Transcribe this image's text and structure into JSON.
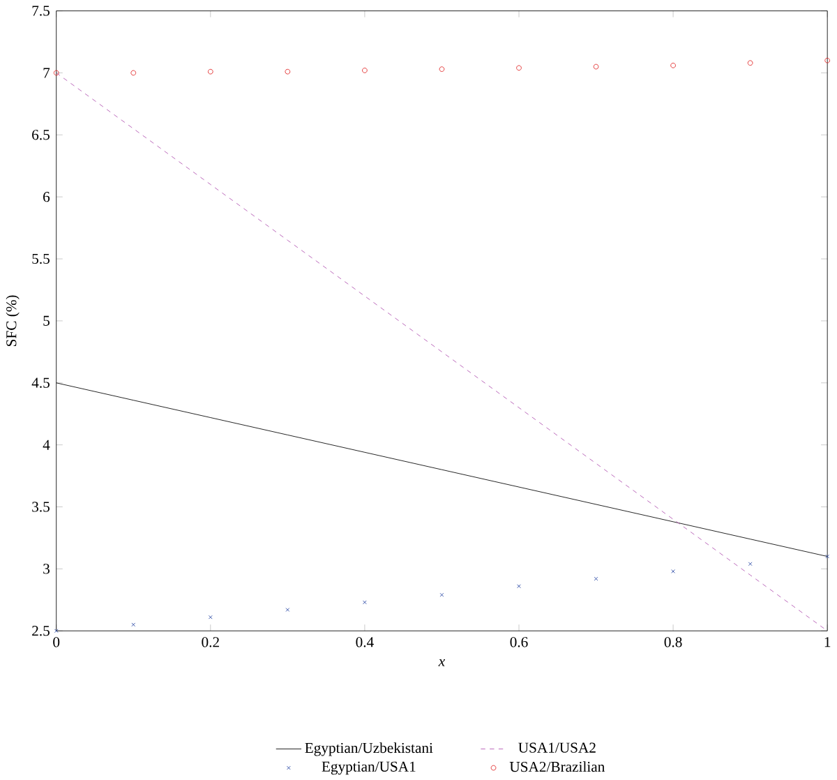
{
  "chart_data": {
    "type": "line",
    "xlabel": "*x*",
    "ylabel": "SFC (%)",
    "x": [
      0,
      0.1,
      0.2,
      0.3,
      0.4,
      0.5,
      0.6,
      0.7,
      0.8,
      0.9,
      1
    ],
    "series": [
      {
        "name": "Egyptian/Uzbekistani",
        "color": "#000000",
        "line_style": "solid",
        "marker": "none",
        "values": [
          4.5,
          4.36,
          4.22,
          4.08,
          3.94,
          3.8,
          3.66,
          3.52,
          3.38,
          3.24,
          3.1
        ]
      },
      {
        "name": "USA1/USA2",
        "color": "#b050b0",
        "line_style": "dashed",
        "marker": "none",
        "values": [
          7.0,
          6.55,
          6.1,
          5.65,
          5.2,
          4.75,
          4.3,
          3.85,
          3.4,
          2.95,
          2.5
        ]
      },
      {
        "name": "Egyptian/USA1",
        "type": "scatter",
        "color": "#2040a0",
        "marker": "cross",
        "values": [
          2.5,
          2.55,
          2.61,
          2.67,
          2.73,
          2.79,
          2.86,
          2.92,
          2.98,
          3.04,
          3.1
        ]
      },
      {
        "name": "USA2/Brazilian",
        "type": "scatter",
        "color": "#e02020",
        "marker": "circle",
        "values": [
          7.0,
          7.0,
          7.01,
          7.01,
          7.02,
          7.03,
          7.04,
          7.05,
          7.06,
          7.08,
          7.1
        ]
      }
    ],
    "xlim": [
      0,
      1
    ],
    "xticks": [
      0,
      0.2,
      0.4,
      0.6,
      0.8,
      1
    ],
    "ylim": [
      2.5,
      7.5
    ],
    "yticks": [
      2.5,
      3,
      3.5,
      4,
      4.5,
      5,
      5.5,
      6,
      6.5,
      7,
      7.5
    ],
    "legend": "bottom",
    "grid": false
  }
}
